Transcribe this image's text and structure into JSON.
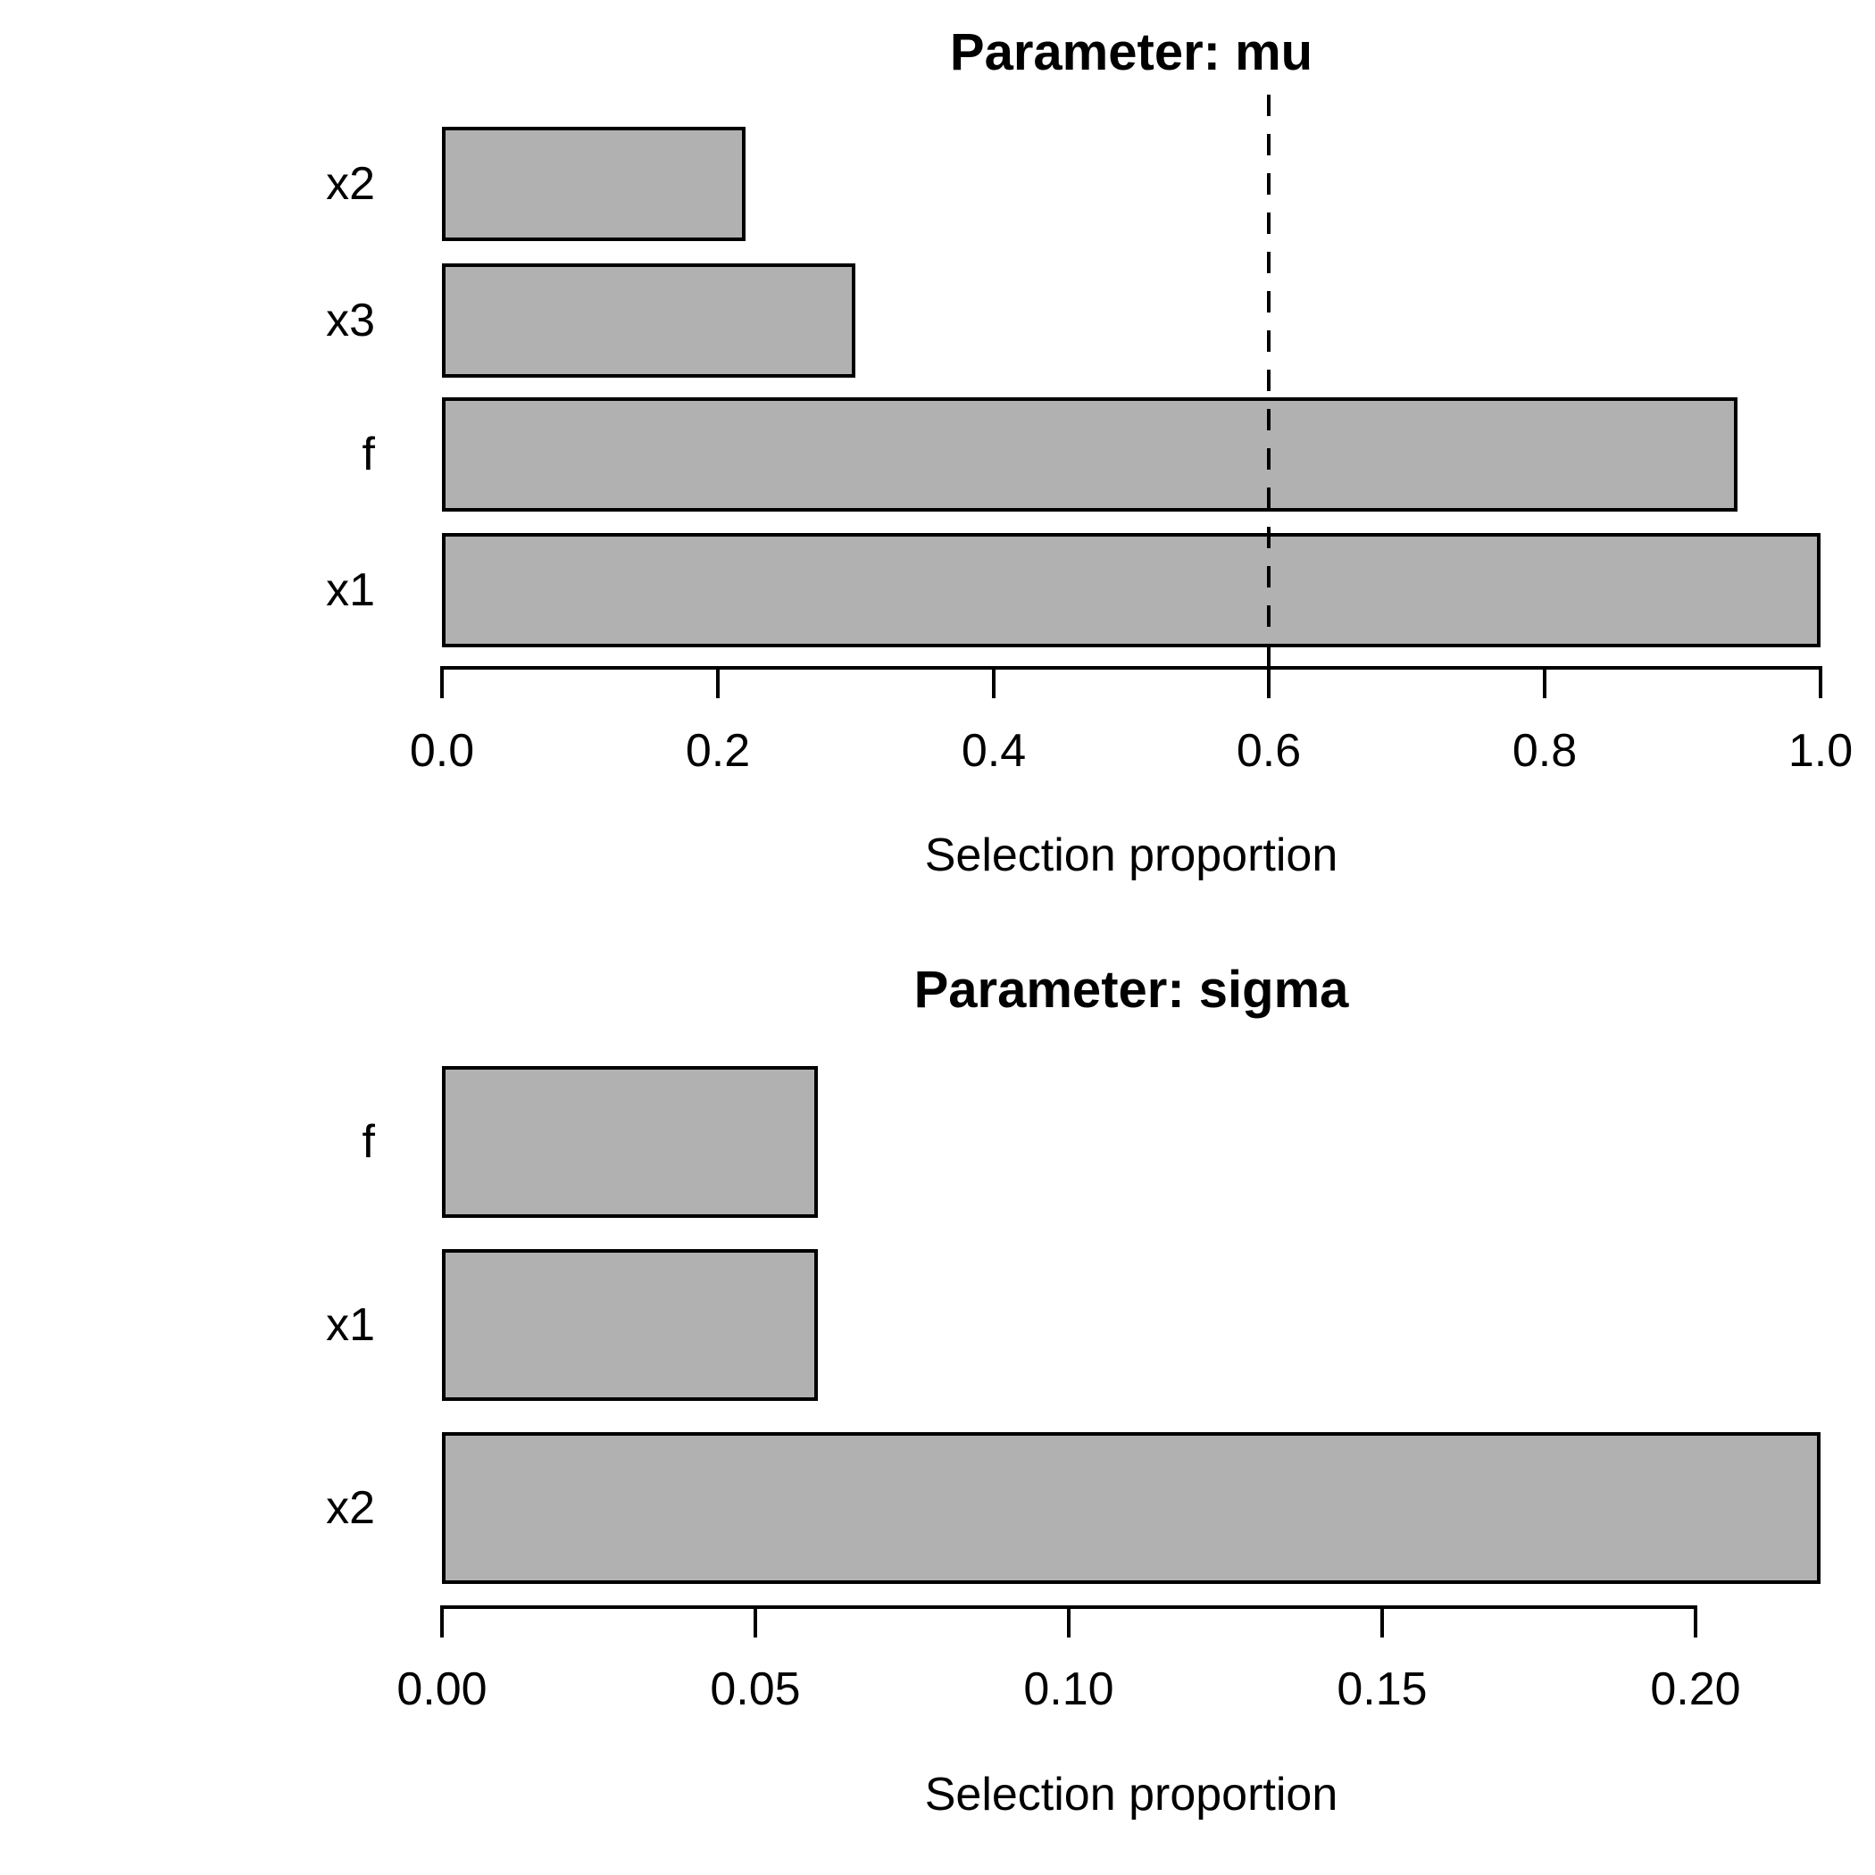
{
  "figure": {
    "background": "#ffffff",
    "text_color": "#000000"
  },
  "chart_data": [
    {
      "type": "bar",
      "orientation": "horizontal",
      "title": "Parameter: mu",
      "xlabel": "Selection proportion",
      "ylabel": "",
      "categories": [
        "x2",
        "x3",
        "f",
        "x1"
      ],
      "values": [
        0.22,
        0.3,
        0.94,
        1.0
      ],
      "xlim": [
        0,
        1.0
      ],
      "ticks": [
        {
          "label": "0.0",
          "value": 0.0
        },
        {
          "label": "0.2",
          "value": 0.2
        },
        {
          "label": "0.4",
          "value": 0.4
        },
        {
          "label": "0.6",
          "value": 0.6
        },
        {
          "label": "0.8",
          "value": 0.8
        },
        {
          "label": "1.0",
          "value": 1.0
        }
      ],
      "threshold": 0.6,
      "threshold_style": "dashed",
      "grid": false,
      "legend": null,
      "bar_fill": "#b1b1b1",
      "bar_border": "#000000"
    },
    {
      "type": "bar",
      "orientation": "horizontal",
      "title": "Parameter: sigma",
      "xlabel": "Selection proportion",
      "ylabel": "",
      "categories": [
        "f",
        "x1",
        "x2"
      ],
      "values": [
        0.06,
        0.06,
        0.22
      ],
      "xlim": [
        0,
        0.22
      ],
      "ticks": [
        {
          "label": "0.00",
          "value": 0.0
        },
        {
          "label": "0.05",
          "value": 0.05
        },
        {
          "label": "0.10",
          "value": 0.1
        },
        {
          "label": "0.15",
          "value": 0.15
        },
        {
          "label": "0.20",
          "value": 0.2
        }
      ],
      "threshold": null,
      "threshold_style": null,
      "grid": false,
      "legend": null,
      "bar_fill": "#b1b1b1",
      "bar_border": "#000000"
    }
  ]
}
